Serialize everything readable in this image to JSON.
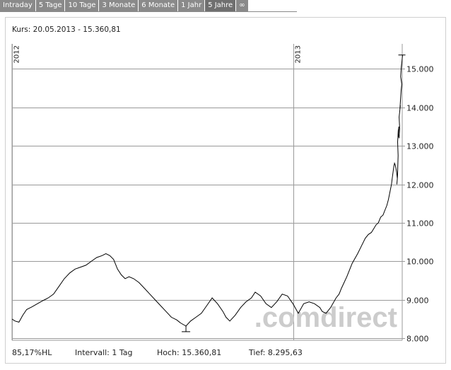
{
  "tabs": [
    {
      "label": "Intraday"
    },
    {
      "label": "5 Tage"
    },
    {
      "label": "10 Tage"
    },
    {
      "label": "3 Monate"
    },
    {
      "label": "6 Monate"
    },
    {
      "label": "1 Jahr"
    },
    {
      "label": "5 Jahre"
    },
    {
      "label": "∞"
    }
  ],
  "kurs": "Kurs: 20.05.2013 - 15.360,81",
  "watermark": ".comdirect",
  "footer": {
    "hl": "85,17%HL",
    "intervall": "Intervall: 1 Tag",
    "hoch": "Hoch:  15.360,81",
    "tief": "Tief:  8.295,63"
  },
  "colors": {
    "tab_bg": "#8a8a8a",
    "grid": "#9a9a9a",
    "line": "#000000",
    "watermark": "#cccccc"
  },
  "chart_data": {
    "type": "line",
    "y_ticks": [
      "8.000",
      "9.000",
      "10.000",
      "11.000",
      "12.000",
      "13.000",
      "14.000",
      "15.000"
    ],
    "y_tick_values": [
      8000,
      9000,
      10000,
      11000,
      12000,
      13000,
      14000,
      15000
    ],
    "ylim": [
      7950,
      15650
    ],
    "x_period_labels": [
      "2012",
      "2013"
    ],
    "x_period_starts": [
      "2012-01-01",
      "2013-01-01"
    ],
    "xlim": [
      "2012-01-01",
      "2013-05-22"
    ],
    "grid": true,
    "series": [
      {
        "points": [
          [
            "2012-01-01",
            8500
          ],
          [
            "2012-01-05",
            8450
          ],
          [
            "2012-01-10",
            8420
          ],
          [
            "2012-01-15",
            8600
          ],
          [
            "2012-01-20",
            8750
          ],
          [
            "2012-01-27",
            8820
          ],
          [
            "2012-02-03",
            8900
          ],
          [
            "2012-02-10",
            8980
          ],
          [
            "2012-02-17",
            9050
          ],
          [
            "2012-02-24",
            9150
          ],
          [
            "2012-03-02",
            9350
          ],
          [
            "2012-03-09",
            9550
          ],
          [
            "2012-03-16",
            9700
          ],
          [
            "2012-03-23",
            9800
          ],
          [
            "2012-03-30",
            9850
          ],
          [
            "2012-04-06",
            9900
          ],
          [
            "2012-04-13",
            10000
          ],
          [
            "2012-04-20",
            10100
          ],
          [
            "2012-04-27",
            10150
          ],
          [
            "2012-05-02",
            10200
          ],
          [
            "2012-05-07",
            10150
          ],
          [
            "2012-05-12",
            10050
          ],
          [
            "2012-05-17",
            9800
          ],
          [
            "2012-05-22",
            9650
          ],
          [
            "2012-05-27",
            9550
          ],
          [
            "2012-06-01",
            9600
          ],
          [
            "2012-06-07",
            9550
          ],
          [
            "2012-06-14",
            9450
          ],
          [
            "2012-06-21",
            9300
          ],
          [
            "2012-06-28",
            9150
          ],
          [
            "2012-07-05",
            9000
          ],
          [
            "2012-07-12",
            8850
          ],
          [
            "2012-07-19",
            8700
          ],
          [
            "2012-07-26",
            8550
          ],
          [
            "2012-08-02",
            8480
          ],
          [
            "2012-08-07",
            8400
          ],
          [
            "2012-08-14",
            8320
          ],
          [
            "2012-08-20",
            8450
          ],
          [
            "2012-08-27",
            8550
          ],
          [
            "2012-09-03",
            8650
          ],
          [
            "2012-09-10",
            8850
          ],
          [
            "2012-09-17",
            9050
          ],
          [
            "2012-09-24",
            8900
          ],
          [
            "2012-10-01",
            8700
          ],
          [
            "2012-10-05",
            8550
          ],
          [
            "2012-10-10",
            8450
          ],
          [
            "2012-10-17",
            8600
          ],
          [
            "2012-10-24",
            8800
          ],
          [
            "2012-10-31",
            8950
          ],
          [
            "2012-11-07",
            9050
          ],
          [
            "2012-11-12",
            9200
          ],
          [
            "2012-11-19",
            9100
          ],
          [
            "2012-11-26",
            8900
          ],
          [
            "2012-12-03",
            8800
          ],
          [
            "2012-12-10",
            8950
          ],
          [
            "2012-12-17",
            9150
          ],
          [
            "2012-12-24",
            9100
          ],
          [
            "2012-12-31",
            8900
          ],
          [
            "2013-01-07",
            8650
          ],
          [
            "2013-01-14",
            8900
          ],
          [
            "2013-01-21",
            8950
          ],
          [
            "2013-01-28",
            8900
          ],
          [
            "2013-02-04",
            8800
          ],
          [
            "2013-02-07",
            8700
          ],
          [
            "2013-02-12",
            8650
          ],
          [
            "2013-02-18",
            8800
          ],
          [
            "2013-02-25",
            9050
          ],
          [
            "2013-03-01",
            9150
          ],
          [
            "2013-03-04",
            9300
          ],
          [
            "2013-03-11",
            9600
          ],
          [
            "2013-03-18",
            9950
          ],
          [
            "2013-03-25",
            10200
          ],
          [
            "2013-03-30",
            10400
          ],
          [
            "2013-04-04",
            10600
          ],
          [
            "2013-04-08",
            10700
          ],
          [
            "2013-04-12",
            10750
          ],
          [
            "2013-04-15",
            10850
          ],
          [
            "2013-04-18",
            10950
          ],
          [
            "2013-04-21",
            11000
          ],
          [
            "2013-04-24",
            11150
          ],
          [
            "2013-04-27",
            11200
          ],
          [
            "2013-04-30",
            11350
          ],
          [
            "2013-05-02",
            11450
          ],
          [
            "2013-05-04",
            11600
          ],
          [
            "2013-05-06",
            11800
          ],
          [
            "2013-05-08",
            12000
          ],
          [
            "2013-05-09",
            12150
          ],
          [
            "2013-05-10",
            12300
          ],
          [
            "2013-05-11",
            12450
          ],
          [
            "2013-05-12",
            12550
          ],
          [
            "2013-05-13",
            12500
          ],
          [
            "2013-05-14",
            12400
          ],
          [
            "2013-05-14",
            12300
          ],
          [
            "2013-05-14",
            12150
          ],
          [
            "2013-05-15",
            12000
          ],
          [
            "2013-05-15",
            12200
          ],
          [
            "2013-05-15",
            12750
          ],
          [
            "2013-05-16",
            13100
          ],
          [
            "2013-05-16",
            13400
          ],
          [
            "2013-05-16",
            13500
          ],
          [
            "2013-05-17",
            13300
          ],
          [
            "2013-05-17",
            13200
          ],
          [
            "2013-05-17",
            13450
          ],
          [
            "2013-05-18",
            13750
          ],
          [
            "2013-05-18",
            13900
          ],
          [
            "2013-05-18",
            14050
          ],
          [
            "2013-05-19",
            13950
          ],
          [
            "2013-05-19",
            14200
          ],
          [
            "2013-05-19",
            14450
          ],
          [
            "2013-05-19",
            14600
          ],
          [
            "2013-05-20",
            14800
          ],
          [
            "2013-05-20",
            15050
          ],
          [
            "2013-05-20",
            15200
          ],
          [
            "2013-05-20",
            15360.81
          ]
        ]
      }
    ]
  }
}
